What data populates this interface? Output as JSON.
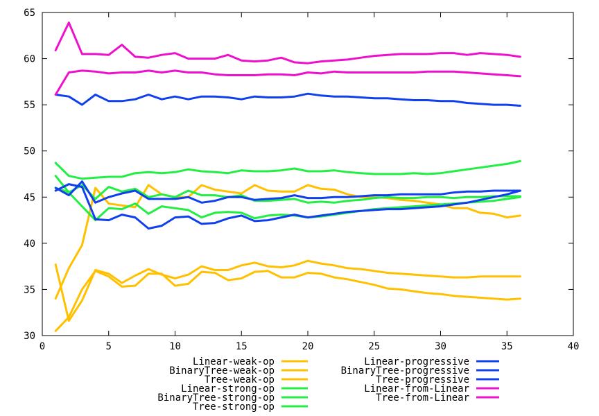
{
  "chart_data": {
    "type": "line",
    "title": "",
    "xlabel": "",
    "ylabel": "",
    "xlim": [
      0,
      40
    ],
    "ylim": [
      30,
      65
    ],
    "xticks": [
      0,
      5,
      10,
      15,
      20,
      25,
      30,
      35,
      40
    ],
    "yticks": [
      30,
      35,
      40,
      45,
      50,
      55,
      60,
      65
    ],
    "xtick_labels": [
      "0",
      "5",
      "10",
      "15",
      "20",
      "25",
      "30",
      "35",
      "40"
    ],
    "ytick_labels": [
      "30",
      "35",
      "40",
      "45",
      "50",
      "55",
      "60",
      "65"
    ],
    "grid": false,
    "legend_position": "bottom",
    "x": [
      1,
      2,
      3,
      4,
      5,
      6,
      7,
      8,
      9,
      10,
      11,
      12,
      13,
      14,
      15,
      16,
      17,
      18,
      19,
      20,
      21,
      22,
      23,
      24,
      25,
      26,
      27,
      28,
      29,
      30,
      31,
      32,
      33,
      34,
      35,
      36
    ],
    "series": [
      {
        "name": "Linear-weak-op",
        "color": "#ffc000",
        "values": [
          30.5,
          32.0,
          35.0,
          37.0,
          36.4,
          35.3,
          35.4,
          36.7,
          36.7,
          35.4,
          35.6,
          36.9,
          36.8,
          36.0,
          36.2,
          36.9,
          37.0,
          36.3,
          36.3,
          36.8,
          36.7,
          36.3,
          36.1,
          35.8,
          35.5,
          35.1,
          35.0,
          34.8,
          34.6,
          34.5,
          34.3,
          34.2,
          34.1,
          34.0,
          33.9,
          34.0
        ]
      },
      {
        "name": "BinaryTree-weak-op",
        "color": "#ffc000",
        "values": [
          34.0,
          37.3,
          39.8,
          46.0,
          44.3,
          44.1,
          43.9,
          46.3,
          45.3,
          45.0,
          45.0,
          46.3,
          45.8,
          45.6,
          45.4,
          46.3,
          45.7,
          45.6,
          45.6,
          46.3,
          45.9,
          45.8,
          45.3,
          45.0,
          45.0,
          44.9,
          44.7,
          44.6,
          44.4,
          44.2,
          43.8,
          43.8,
          43.3,
          43.2,
          42.8,
          43.0
        ]
      },
      {
        "name": "Tree-weak-op",
        "color": "#ffc000",
        "values": [
          37.7,
          31.6,
          33.8,
          37.1,
          36.7,
          35.7,
          36.5,
          37.2,
          36.6,
          36.2,
          36.6,
          37.5,
          37.1,
          37.1,
          37.6,
          37.9,
          37.5,
          37.4,
          37.6,
          38.1,
          37.8,
          37.6,
          37.3,
          37.2,
          37.0,
          36.8,
          36.7,
          36.6,
          36.5,
          36.4,
          36.3,
          36.3,
          36.4,
          36.4,
          36.4,
          36.4
        ]
      },
      {
        "name": "Linear-strong-op",
        "color": "#22ee44",
        "values": [
          46.0,
          45.5,
          44.0,
          42.5,
          43.8,
          43.7,
          44.3,
          43.2,
          44.0,
          43.8,
          43.6,
          42.8,
          43.3,
          43.4,
          43.3,
          42.7,
          43.0,
          43.1,
          43.0,
          42.8,
          42.9,
          43.1,
          43.3,
          43.5,
          43.7,
          43.8,
          43.9,
          44.0,
          44.1,
          44.2,
          44.3,
          44.4,
          44.5,
          44.6,
          44.8,
          45.0
        ]
      },
      {
        "name": "BinaryTree-strong-op",
        "color": "#22ee44",
        "values": [
          47.3,
          45.5,
          46.3,
          44.8,
          46.1,
          45.6,
          45.9,
          45.0,
          45.3,
          45.0,
          45.7,
          45.2,
          45.2,
          45.0,
          45.2,
          44.6,
          44.6,
          44.7,
          44.8,
          44.4,
          44.5,
          44.4,
          44.6,
          44.7,
          44.9,
          45.0,
          44.9,
          44.9,
          45.0,
          45.0,
          44.9,
          45.0,
          45.0,
          45.1,
          45.1,
          45.1
        ]
      },
      {
        "name": "Tree-strong-op",
        "color": "#22ee44",
        "values": [
          48.7,
          47.3,
          47.0,
          47.1,
          47.2,
          47.2,
          47.6,
          47.7,
          47.6,
          47.7,
          48.0,
          47.8,
          47.7,
          47.6,
          47.9,
          47.8,
          47.8,
          47.9,
          48.1,
          47.8,
          47.8,
          47.9,
          47.7,
          47.6,
          47.5,
          47.5,
          47.5,
          47.6,
          47.5,
          47.6,
          47.8,
          48.0,
          48.2,
          48.4,
          48.6,
          48.9
        ]
      },
      {
        "name": "Linear-progressive",
        "color": "#1040ee",
        "values": [
          45.7,
          46.4,
          46.1,
          42.6,
          42.5,
          43.1,
          42.8,
          41.6,
          41.9,
          42.8,
          42.9,
          42.1,
          42.2,
          42.7,
          43.0,
          42.4,
          42.5,
          42.8,
          43.1,
          42.8,
          43.0,
          43.2,
          43.4,
          43.5,
          43.6,
          43.7,
          43.7,
          43.8,
          43.9,
          44.0,
          44.2,
          44.4,
          44.7,
          45.0,
          45.3,
          45.7
        ]
      },
      {
        "name": "BinaryTree-progressive",
        "color": "#1040ee",
        "values": [
          46.0,
          45.2,
          46.7,
          44.4,
          45.0,
          45.4,
          45.7,
          44.8,
          44.8,
          44.8,
          45.0,
          44.4,
          44.6,
          45.0,
          45.0,
          44.7,
          44.8,
          44.9,
          45.2,
          44.9,
          44.9,
          45.0,
          45.0,
          45.1,
          45.2,
          45.2,
          45.3,
          45.3,
          45.3,
          45.3,
          45.5,
          45.6,
          45.6,
          45.7,
          45.7,
          45.7
        ]
      },
      {
        "name": "Tree-progressive",
        "color": "#1040ee",
        "values": [
          56.1,
          55.9,
          55.0,
          56.1,
          55.4,
          55.4,
          55.6,
          56.1,
          55.6,
          55.9,
          55.6,
          55.9,
          55.9,
          55.8,
          55.6,
          55.9,
          55.8,
          55.8,
          55.9,
          56.2,
          56.0,
          55.9,
          55.9,
          55.8,
          55.7,
          55.7,
          55.6,
          55.5,
          55.5,
          55.4,
          55.4,
          55.2,
          55.1,
          55.0,
          55.0,
          54.9
        ]
      },
      {
        "name": "Linear-from-Linear",
        "color": "#ee10cc",
        "values": [
          56.1,
          58.5,
          58.7,
          58.6,
          58.4,
          58.5,
          58.5,
          58.7,
          58.5,
          58.7,
          58.5,
          58.5,
          58.3,
          58.2,
          58.2,
          58.2,
          58.3,
          58.3,
          58.2,
          58.5,
          58.4,
          58.6,
          58.5,
          58.5,
          58.5,
          58.5,
          58.5,
          58.5,
          58.6,
          58.6,
          58.6,
          58.5,
          58.4,
          58.3,
          58.2,
          58.1
        ]
      },
      {
        "name": "Tree-from-Linear",
        "color": "#ee10cc",
        "values": [
          60.9,
          63.9,
          60.5,
          60.5,
          60.4,
          61.5,
          60.2,
          60.1,
          60.4,
          60.6,
          60.0,
          60.0,
          60.0,
          60.4,
          59.8,
          59.7,
          59.8,
          60.1,
          59.6,
          59.5,
          59.7,
          59.8,
          59.9,
          60.1,
          60.3,
          60.4,
          60.5,
          60.5,
          60.5,
          60.6,
          60.6,
          60.4,
          60.6,
          60.5,
          60.4,
          60.2
        ]
      }
    ]
  }
}
